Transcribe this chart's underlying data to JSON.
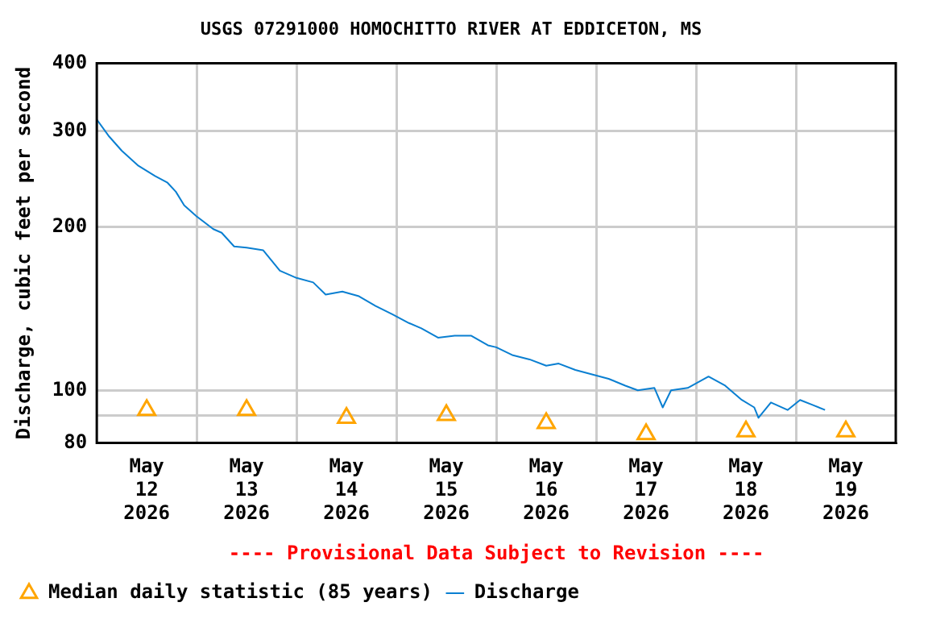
{
  "chart_data": {
    "type": "line",
    "title": "USGS 07291000 HOMOCHITTO RIVER AT EDDICETON, MS",
    "ylabel": "Discharge, cubic feet per second",
    "annotations": [
      "---- Provisional Data Subject to Revision ----"
    ],
    "xlim": [
      "2026-05-12T00:00",
      "2026-05-20T00:00"
    ],
    "xticks": [
      {
        "value": "2026-05-12T12:00",
        "label": "May 12 2026"
      },
      {
        "value": "2026-05-13T00:00",
        "label": null
      },
      {
        "value": "2026-05-13T12:00",
        "label": "May 13 2026"
      },
      {
        "value": "2026-05-14T00:00",
        "label": null
      },
      {
        "value": "2026-05-14T12:00",
        "label": "May 14 2026"
      },
      {
        "value": "2026-05-15T00:00",
        "label": null
      },
      {
        "value": "2026-05-15T12:00",
        "label": "May 15 2026"
      },
      {
        "value": "2026-05-16T00:00",
        "label": null
      },
      {
        "value": "2026-05-16T12:00",
        "label": "May 16 2026"
      },
      {
        "value": "2026-05-17T00:00",
        "label": null
      },
      {
        "value": "2026-05-17T12:00",
        "label": "May 17 2026"
      },
      {
        "value": "2026-05-18T00:00",
        "label": null
      },
      {
        "value": "2026-05-18T12:00",
        "label": "May 18 2026"
      },
      {
        "value": "2026-05-19T00:00",
        "label": null
      },
      {
        "value": "2026-05-19T12:00",
        "label": "May 19 2026"
      }
    ],
    "ylim": [
      80,
      400
    ],
    "yticks": [
      80,
      {
        "value": 90,
        "label": null
      },
      100,
      200,
      300,
      400
    ],
    "log": "y",
    "grid": true,
    "legend": "bottom",
    "series": [
      {
        "name": "Median daily statistic (85 years)",
        "type": "scatter",
        "marker": "triangle",
        "color": "#ffa500",
        "x": [
          "2026-05-12T12:00",
          "2026-05-13T12:00",
          "2026-05-14T12:00",
          "2026-05-15T12:00",
          "2026-05-16T12:00",
          "2026-05-17T12:00",
          "2026-05-18T12:00",
          "2026-05-19T12:00"
        ],
        "values": [
          92,
          92,
          89,
          90,
          87,
          83,
          84,
          84
        ]
      },
      {
        "name": "Discharge",
        "type": "line",
        "marker": "none",
        "color": "#0a7fd1",
        "x": [
          "2026-05-12T00:00",
          "2026-05-12T03:00",
          "2026-05-12T06:00",
          "2026-05-12T10:00",
          "2026-05-12T14:00",
          "2026-05-12T17:00",
          "2026-05-12T19:00",
          "2026-05-12T21:00",
          "2026-05-13T00:00",
          "2026-05-13T04:00",
          "2026-05-13T06:00",
          "2026-05-13T09:00",
          "2026-05-13T12:00",
          "2026-05-13T16:00",
          "2026-05-13T20:00",
          "2026-05-14T00:00",
          "2026-05-14T04:00",
          "2026-05-14T07:00",
          "2026-05-14T11:00",
          "2026-05-14T15:00",
          "2026-05-14T19:00",
          "2026-05-14T23:00",
          "2026-05-15T03:00",
          "2026-05-15T06:00",
          "2026-05-15T10:00",
          "2026-05-15T14:00",
          "2026-05-15T18:00",
          "2026-05-15T22:00",
          "2026-05-16T00:00",
          "2026-05-16T04:00",
          "2026-05-16T08:00",
          "2026-05-16T12:00",
          "2026-05-16T15:00",
          "2026-05-16T19:00",
          "2026-05-16T23:00",
          "2026-05-17T03:00",
          "2026-05-17T07:00",
          "2026-05-17T10:00",
          "2026-05-17T14:00",
          "2026-05-17T16:00",
          "2026-05-17T18:00",
          "2026-05-17T22:00",
          "2026-05-18T03:00",
          "2026-05-18T07:00",
          "2026-05-18T11:00",
          "2026-05-18T14:00",
          "2026-05-18T15:00",
          "2026-05-18T18:00",
          "2026-05-18T22:00",
          "2026-05-19T01:00",
          "2026-05-19T04:00",
          "2026-05-19T07:00"
        ],
        "values": [
          315,
          293,
          276,
          259,
          248,
          241,
          232,
          219,
          209,
          198,
          195,
          184,
          183,
          181,
          166,
          161,
          158,
          150,
          152,
          149,
          143,
          138,
          133,
          130,
          125,
          126,
          126,
          121,
          120,
          116,
          114,
          111,
          112,
          109,
          107,
          105,
          102,
          100,
          101,
          93,
          100,
          101,
          106,
          102,
          96,
          93,
          89,
          95,
          92,
          96,
          94,
          92
        ]
      }
    ]
  }
}
